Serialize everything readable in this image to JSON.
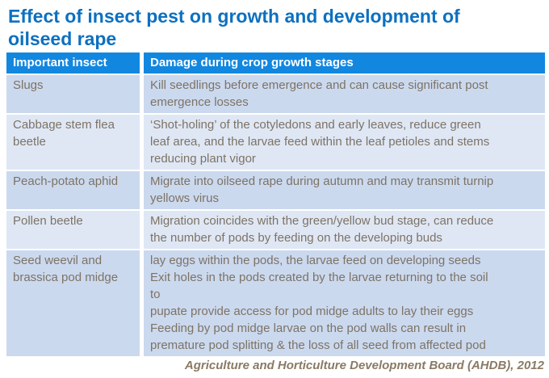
{
  "page": {
    "title_lines": [
      "Effect of insect pest on growth and development of",
      "oilseed rape"
    ]
  },
  "table": {
    "headers": {
      "insect": "Important insect",
      "damage": "Damage during crop growth stages"
    },
    "rows": [
      {
        "insect": [
          "Slugs"
        ],
        "damage": [
          "Kill seedlings before emergence and can cause significant post",
          "emergence losses"
        ]
      },
      {
        "insect": [
          "Cabbage stem flea",
          "beetle"
        ],
        "damage": [
          "‘Shot-holing’ of the cotyledons and early leaves, reduce green",
          "leaf area, and  the larvae feed within the leaf petioles and stems",
          "reducing  plant vigor"
        ]
      },
      {
        "insect": [
          "Peach-potato aphid"
        ],
        "damage": [
          "Migrate into oilseed rape during autumn and may transmit turnip",
          "yellows virus"
        ]
      },
      {
        "insect": [
          "Pollen beetle"
        ],
        "damage": [
          "Migration coincides with the green/yellow bud stage, can reduce",
          "the number of pods by feeding on the developing buds"
        ]
      },
      {
        "insect": [
          "Seed weevil and",
          "brassica pod midge"
        ],
        "damage": [
          "lay eggs within the pods, the larvae feed on developing seeds",
          "Exit holes in the pods created by the larvae returning to the soil",
          "to",
          "pupate provide access for pod midge adults to lay their eggs",
          "Feeding by pod midge larvae on the pod walls can result in",
          "premature pod splitting & the loss of all seed from affected pod"
        ]
      }
    ]
  },
  "footer": {
    "credit": "Agriculture and Horticulture Development Board (AHDB), 2012"
  },
  "colors": {
    "title_text": "#0d70c0",
    "header_bg": "#1287e0",
    "header_text": "#ffffff",
    "row_odd_bg": "#cbd9ef",
    "row_even_bg": "#dfe7f5",
    "body_text": "#7d7365",
    "footer_text": "#8a7a64"
  }
}
